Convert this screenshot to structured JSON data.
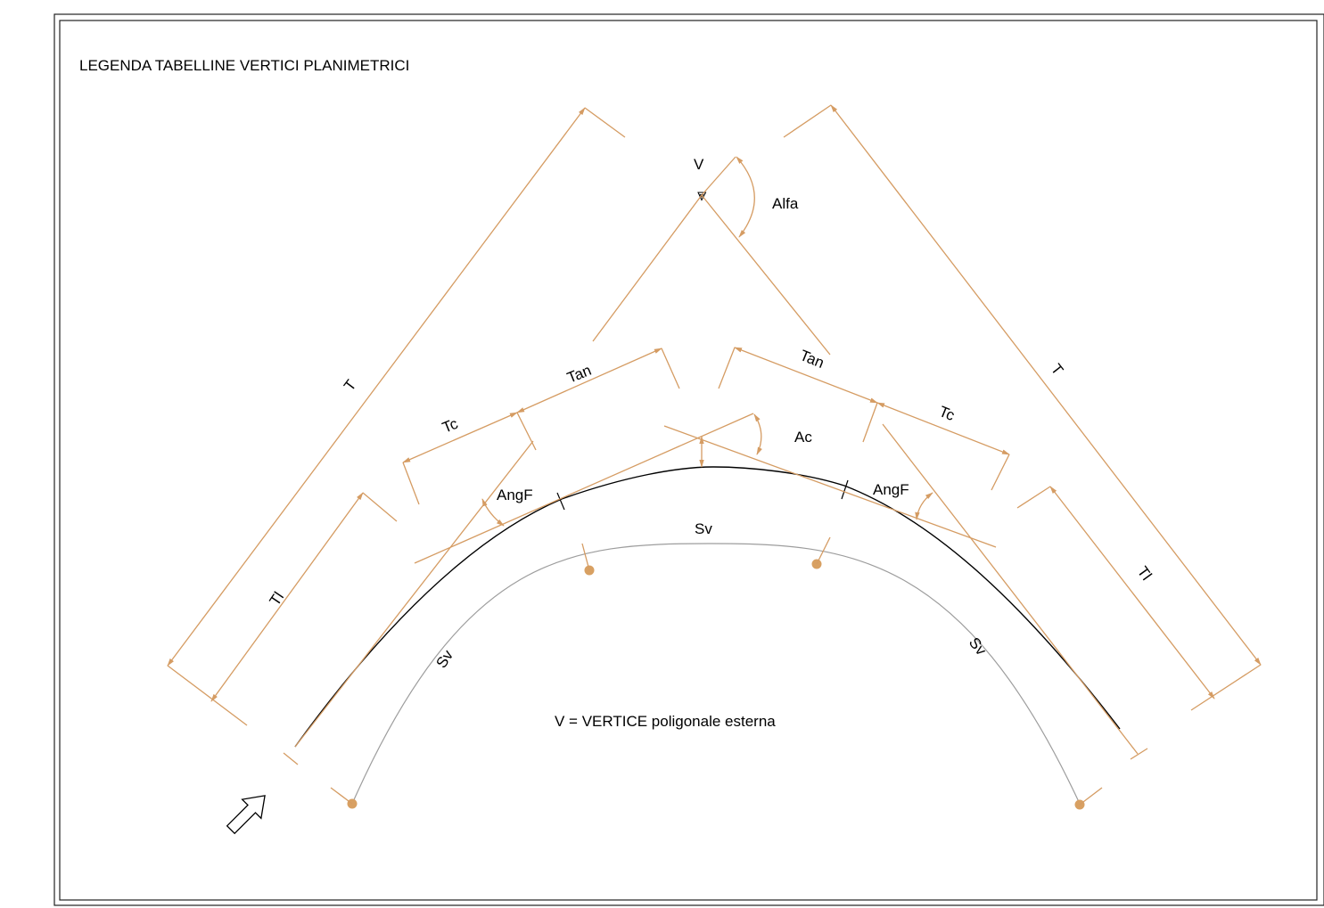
{
  "title": "LEGENDA TABELLINE VERTICI PLANIMETRICI",
  "vertex_label": "V",
  "note": "V = VERTICE poligonale esterna",
  "labels": {
    "alfa": "Alfa",
    "t_left": "T",
    "t_right": "T",
    "tan_left": "Tan",
    "tan_right": "Tan",
    "tc_left": "Tc",
    "tc_right": "Tc",
    "ac": "Ac",
    "angf_left": "AngF",
    "angf_right": "AngF",
    "tl_left": "Tl",
    "tl_right": "Tl",
    "sv_top": "Sv",
    "sv_left": "Sv",
    "sv_right": "Sv"
  },
  "icons": {
    "direction": "arrow-icon",
    "vertex": "triangle-icon"
  },
  "colors": {
    "dimension": "#d59c63",
    "axis": "#000000",
    "offset_curve": "#999999",
    "stake_dot": "#d8a062"
  }
}
